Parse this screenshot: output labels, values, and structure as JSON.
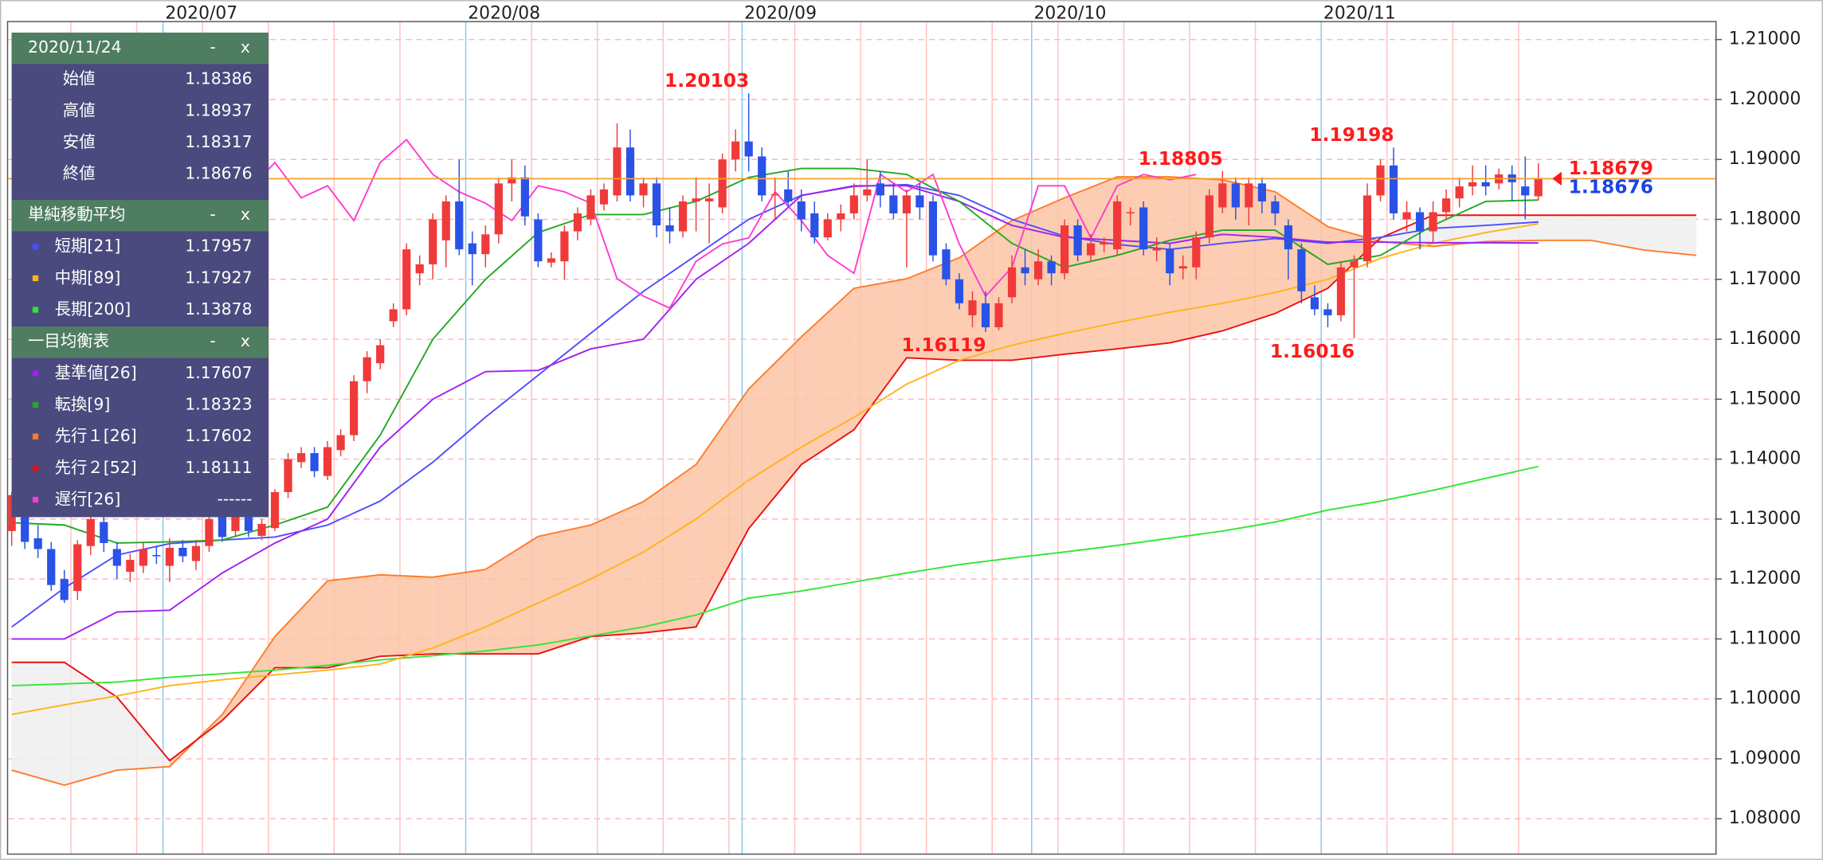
{
  "chart_data": {
    "type": "candlestick",
    "xlim": [
      -0.27,
      129.5
    ],
    "ylim": [
      1.0741,
      1.2131
    ],
    "yticks": [
      {
        "value": 1.08,
        "label": "1.08000"
      },
      {
        "value": 1.09,
        "label": "1.09000"
      },
      {
        "value": 1.1,
        "label": "1.10000"
      },
      {
        "value": 1.11,
        "label": "1.11000"
      },
      {
        "value": 1.12,
        "label": "1.12000"
      },
      {
        "value": 1.13,
        "label": "1.13000"
      },
      {
        "value": 1.14,
        "label": "1.14000"
      },
      {
        "value": 1.15,
        "label": "1.15000"
      },
      {
        "value": 1.16,
        "label": "1.16000"
      },
      {
        "value": 1.17,
        "label": "1.17000"
      },
      {
        "value": 1.18,
        "label": "1.18000"
      },
      {
        "value": 1.19,
        "label": "1.19000"
      },
      {
        "value": 1.2,
        "label": "1.20000"
      },
      {
        "value": 1.21,
        "label": "1.21000"
      }
    ],
    "xticks": [
      {
        "value": 11.5,
        "label": "2020/07"
      },
      {
        "value": 34.5,
        "label": "2020/08"
      },
      {
        "value": 55.5,
        "label": "2020/09"
      },
      {
        "value": 77.5,
        "label": "2020/10"
      },
      {
        "value": 99.5,
        "label": "2020/11"
      }
    ],
    "xgrid_minor": [
      4.5,
      9.5,
      14.5,
      19.5,
      24.5,
      29.5,
      39.5,
      44.5,
      49.5,
      54.5,
      59.5,
      64.5,
      69.5,
      74.5,
      79.5,
      84.5,
      89.5,
      94.5,
      104.5,
      109.5,
      114.5
    ],
    "grid": true,
    "up_color": "#f03a3a",
    "down_color": "#2a52e6",
    "open": [
      1.128,
      1.134,
      1.1268,
      1.125,
      1.12,
      1.118,
      1.1255,
      1.1295,
      1.125,
      1.1212,
      1.1222,
      1.124,
      1.1222,
      1.1252,
      1.123,
      1.1255,
      1.131,
      1.128,
      1.133,
      1.1272,
      1.1285,
      1.1345,
      1.1395,
      1.141,
      1.1372,
      1.1415,
      1.144,
      1.153,
      1.156,
      1.163,
      1.165,
      1.171,
      1.1725,
      1.1765,
      1.183,
      1.176,
      1.1742,
      1.1775,
      1.186,
      1.187,
      1.18,
      1.1728,
      1.173,
      1.178,
      1.18,
      1.1825,
      1.184,
      1.192,
      1.184,
      1.186,
      1.179,
      1.178,
      1.183,
      1.183,
      1.182,
      1.19,
      1.193,
      1.1905,
      1.184,
      1.185,
      1.183,
      1.181,
      1.177,
      1.18,
      1.181,
      1.184,
      1.186,
      1.184,
      1.181,
      1.184,
      1.183,
      1.175,
      1.17,
      1.164,
      1.166,
      1.162,
      1.167,
      1.172,
      1.17,
      1.173,
      1.171,
      1.179,
      1.174,
      1.1758,
      1.175,
      1.181,
      1.182,
      1.1748,
      1.175,
      1.1718,
      1.172,
      1.177,
      1.182,
      1.186,
      1.182,
      1.186,
      1.183,
      1.179,
      1.175,
      1.167,
      1.165,
      1.164,
      1.172,
      1.173,
      1.184,
      1.189,
      1.18,
      1.1812,
      1.178,
      1.1812,
      1.1835,
      1.1855,
      1.1862,
      1.186,
      1.1875,
      1.1855,
      1.18386
    ],
    "high": [
      1.1345,
      1.1355,
      1.129,
      1.1262,
      1.1215,
      1.1265,
      1.132,
      1.1305,
      1.1262,
      1.1242,
      1.1262,
      1.1255,
      1.1268,
      1.1265,
      1.1265,
      1.131,
      1.1325,
      1.133,
      1.1345,
      1.13,
      1.135,
      1.141,
      1.142,
      1.142,
      1.143,
      1.145,
      1.154,
      1.158,
      1.16,
      1.166,
      1.176,
      1.174,
      1.181,
      1.184,
      1.19,
      1.178,
      1.179,
      1.187,
      1.19,
      1.189,
      1.181,
      1.1745,
      1.179,
      1.182,
      1.185,
      1.186,
      1.196,
      1.195,
      1.187,
      1.187,
      1.182,
      1.184,
      1.187,
      1.186,
      1.191,
      1.195,
      1.20103,
      1.192,
      1.187,
      1.188,
      1.185,
      1.183,
      1.181,
      1.1825,
      1.186,
      1.19,
      1.188,
      1.186,
      1.185,
      1.186,
      1.184,
      1.176,
      1.171,
      1.168,
      1.168,
      1.167,
      1.174,
      1.175,
      1.175,
      1.174,
      1.18,
      1.18,
      1.1775,
      1.177,
      1.184,
      1.182,
      1.183,
      1.177,
      1.176,
      1.174,
      1.178,
      1.185,
      1.18805,
      1.187,
      1.187,
      1.187,
      1.184,
      1.18,
      1.176,
      1.169,
      1.166,
      1.173,
      1.174,
      1.186,
      1.19,
      1.19198,
      1.183,
      1.182,
      1.183,
      1.185,
      1.187,
      1.189,
      1.189,
      1.1885,
      1.189,
      1.1905,
      1.18937
    ],
    "low": [
      1.1255,
      1.125,
      1.1235,
      1.118,
      1.116,
      1.1165,
      1.124,
      1.1245,
      1.12,
      1.1195,
      1.121,
      1.1225,
      1.1195,
      1.1228,
      1.1215,
      1.1245,
      1.1262,
      1.127,
      1.127,
      1.1265,
      1.128,
      1.1335,
      1.1385,
      1.137,
      1.1365,
      1.1405,
      1.143,
      1.151,
      1.155,
      1.162,
      1.164,
      1.169,
      1.17,
      1.172,
      1.174,
      1.169,
      1.172,
      1.176,
      1.183,
      1.179,
      1.172,
      1.172,
      1.17,
      1.1765,
      1.179,
      1.1815,
      1.183,
      1.183,
      1.182,
      1.177,
      1.176,
      1.177,
      1.178,
      1.176,
      1.181,
      1.188,
      1.188,
      1.183,
      1.18,
      1.182,
      1.178,
      1.176,
      1.1765,
      1.178,
      1.18,
      1.183,
      1.182,
      1.18,
      1.172,
      1.18,
      1.173,
      1.169,
      1.165,
      1.162,
      1.16119,
      1.1615,
      1.166,
      1.169,
      1.169,
      1.169,
      1.17,
      1.173,
      1.173,
      1.1745,
      1.174,
      1.179,
      1.174,
      1.173,
      1.169,
      1.17,
      1.17,
      1.176,
      1.181,
      1.18,
      1.179,
      1.181,
      1.179,
      1.17,
      1.166,
      1.164,
      1.162,
      1.163,
      1.16016,
      1.172,
      1.183,
      1.18,
      1.178,
      1.175,
      1.176,
      1.18,
      1.182,
      1.184,
      1.184,
      1.185,
      1.183,
      1.18,
      1.18317
    ],
    "close": [
      1.134,
      1.1262,
      1.125,
      1.119,
      1.1165,
      1.1258,
      1.13,
      1.126,
      1.1222,
      1.1232,
      1.125,
      1.1238,
      1.1252,
      1.1238,
      1.1255,
      1.13,
      1.127,
      1.132,
      1.128,
      1.1292,
      1.1345,
      1.14,
      1.141,
      1.138,
      1.142,
      1.144,
      1.153,
      1.157,
      1.159,
      1.165,
      1.175,
      1.1725,
      1.18,
      1.183,
      1.175,
      1.1742,
      1.1775,
      1.186,
      1.187,
      1.1805,
      1.173,
      1.1735,
      1.178,
      1.181,
      1.184,
      1.185,
      1.192,
      1.184,
      1.186,
      1.179,
      1.178,
      1.183,
      1.1835,
      1.1835,
      1.19,
      1.193,
      1.1905,
      1.184,
      1.1842,
      1.183,
      1.18,
      1.177,
      1.18,
      1.181,
      1.184,
      1.185,
      1.184,
      1.181,
      1.184,
      1.182,
      1.174,
      1.17,
      1.166,
      1.1665,
      1.162,
      1.166,
      1.172,
      1.171,
      1.173,
      1.171,
      1.179,
      1.174,
      1.176,
      1.1762,
      1.183,
      1.1812,
      1.175,
      1.1752,
      1.171,
      1.1722,
      1.177,
      1.184,
      1.186,
      1.182,
      1.186,
      1.183,
      1.181,
      1.175,
      1.168,
      1.165,
      1.164,
      1.172,
      1.173,
      1.184,
      1.189,
      1.181,
      1.1812,
      1.178,
      1.1812,
      1.1835,
      1.1855,
      1.1862,
      1.1855,
      1.1875,
      1.1862,
      1.184,
      1.18676
    ],
    "high_labels": [
      56,
      92,
      105
    ],
    "low_labels": [
      74,
      102
    ],
    "label_color": "#ff1a1a",
    "current_price": 1.18679,
    "current_color": "#f0a030",
    "current_label_color": "#ff1a1a",
    "close_label_color": "#1a44e6",
    "cloud": {
      "x": [
        0,
        4,
        8,
        12,
        16,
        20,
        24,
        28,
        32,
        36,
        40,
        44,
        48,
        52,
        56,
        60,
        64,
        68,
        72,
        76,
        80,
        84,
        88,
        92,
        96,
        100,
        104,
        108,
        112,
        116,
        120,
        124,
        128
      ],
      "a": [
        1.0881,
        1.0856,
        1.0881,
        1.0887,
        1.0974,
        1.1104,
        1.1197,
        1.1207,
        1.1203,
        1.1216,
        1.1271,
        1.129,
        1.1329,
        1.1391,
        1.1517,
        1.1604,
        1.1685,
        1.1701,
        1.1736,
        1.1798,
        1.1836,
        1.1871,
        1.1871,
        1.1866,
        1.1846,
        1.1788,
        1.1763,
        1.1755,
        1.1763,
        1.1765,
        1.1765,
        1.1749,
        1.174
      ],
      "b": [
        1.1061,
        1.1061,
        1.1003,
        1.0897,
        1.0964,
        1.1052,
        1.1052,
        1.1071,
        1.1075,
        1.1075,
        1.1075,
        1.1104,
        1.111,
        1.112,
        1.1284,
        1.1391,
        1.1449,
        1.1569,
        1.1565,
        1.1565,
        1.1575,
        1.1584,
        1.1594,
        1.1614,
        1.1643,
        1.1685,
        1.1769,
        1.1807,
        1.1807,
        1.1807,
        1.1807,
        1.1807,
        1.1807
      ],
      "a_color": "#ff7b2a",
      "b_color": "#e81010",
      "fill_up": "#fcc4a6",
      "fill_down": "#eeeeee"
    },
    "lines": [
      {
        "color": "#33e533",
        "x": [
          0,
          4,
          8,
          12,
          16,
          20,
          24,
          28,
          32,
          36,
          40,
          44,
          48,
          52,
          56,
          60,
          64,
          68,
          72,
          76,
          80,
          84,
          88,
          92,
          96,
          100,
          104,
          108,
          112,
          116
        ],
        "values": [
          1.1022,
          1.1025,
          1.1028,
          1.1036,
          1.1042,
          1.1048,
          1.1056,
          1.1065,
          1.1072,
          1.108,
          1.109,
          1.1105,
          1.112,
          1.114,
          1.1168,
          1.118,
          1.1195,
          1.121,
          1.1224,
          1.1235,
          1.1245,
          1.1256,
          1.1268,
          1.128,
          1.1295,
          1.1315,
          1.133,
          1.1348,
          1.1368,
          1.13878
        ]
      },
      {
        "color": "#ffb319",
        "x": [
          0,
          4,
          8,
          12,
          16,
          20,
          24,
          28,
          32,
          36,
          40,
          44,
          48,
          52,
          56,
          60,
          64,
          68,
          72,
          76,
          80,
          84,
          88,
          92,
          96,
          100,
          104,
          108,
          112,
          116
        ],
        "values": [
          1.0974,
          1.099,
          1.1005,
          1.1022,
          1.1032,
          1.104,
          1.1048,
          1.1058,
          1.1085,
          1.112,
          1.116,
          1.12,
          1.1245,
          1.13,
          1.1365,
          1.142,
          1.147,
          1.1525,
          1.1565,
          1.159,
          1.161,
          1.1628,
          1.1645,
          1.166,
          1.1678,
          1.17,
          1.1735,
          1.176,
          1.1778,
          1.17927
        ]
      },
      {
        "color": "#4d4dff",
        "x": [
          0,
          4,
          8,
          12,
          16,
          20,
          24,
          28,
          32,
          36,
          40,
          44,
          48,
          52,
          56,
          60,
          64,
          68,
          72,
          76,
          80,
          84,
          88,
          92,
          96,
          100,
          104,
          108,
          112,
          116
        ],
        "values": [
          1.112,
          1.1185,
          1.124,
          1.1259,
          1.1265,
          1.127,
          1.129,
          1.133,
          1.1395,
          1.147,
          1.154,
          1.161,
          1.168,
          1.174,
          1.18,
          1.184,
          1.1855,
          1.1858,
          1.184,
          1.18,
          1.1772,
          1.1758,
          1.175,
          1.176,
          1.1768,
          1.176,
          1.177,
          1.1785,
          1.179,
          1.17957
        ]
      },
      {
        "color": "#a020f0",
        "x": [
          0,
          4,
          8,
          12,
          16,
          20,
          24,
          28,
          32,
          36,
          40,
          44,
          48,
          52,
          56,
          60,
          64,
          68,
          72,
          76,
          80,
          84,
          88,
          92,
          96,
          100,
          104,
          108,
          112,
          116
        ],
        "values": [
          1.11,
          1.11,
          1.1145,
          1.1148,
          1.121,
          1.126,
          1.13,
          1.142,
          1.15,
          1.1546,
          1.1548,
          1.1584,
          1.16,
          1.17,
          1.176,
          1.184,
          1.1856,
          1.1856,
          1.183,
          1.179,
          1.177,
          1.1765,
          1.176,
          1.1775,
          1.177,
          1.1762,
          1.1762,
          1.1761,
          1.1761,
          1.17607
        ]
      },
      {
        "color": "#22a822",
        "x": [
          0,
          4,
          8,
          12,
          16,
          20,
          24,
          28,
          32,
          36,
          40,
          44,
          48,
          52,
          56,
          60,
          64,
          68,
          72,
          76,
          80,
          84,
          88,
          92,
          96,
          100,
          104,
          108,
          112,
          116
        ],
        "values": [
          1.1294,
          1.129,
          1.126,
          1.1262,
          1.1265,
          1.129,
          1.132,
          1.144,
          1.16,
          1.17,
          1.1778,
          1.1808,
          1.1808,
          1.183,
          1.187,
          1.1885,
          1.1885,
          1.1875,
          1.183,
          1.176,
          1.172,
          1.174,
          1.1765,
          1.1782,
          1.1782,
          1.1725,
          1.174,
          1.179,
          1.183,
          1.18323
        ]
      },
      {
        "color": "#ff3ad0",
        "x": [
          0,
          4,
          8,
          12,
          16,
          20,
          22,
          24,
          26,
          28,
          30,
          32,
          34,
          36,
          38,
          40,
          42,
          44,
          46,
          48,
          50,
          52,
          54,
          56,
          58,
          60,
          62,
          64,
          66,
          68,
          70,
          72,
          74,
          76,
          78,
          80,
          82,
          84,
          86,
          88,
          90
        ],
        "values": [
          1.1445,
          1.152,
          1.16,
          1.17,
          1.18,
          1.1895,
          1.1836,
          1.1856,
          1.1798,
          1.1895,
          1.1933,
          1.1875,
          1.1846,
          1.1827,
          1.1798,
          1.1856,
          1.1846,
          1.1827,
          1.1701,
          1.1672,
          1.1652,
          1.173,
          1.1759,
          1.1769,
          1.1846,
          1.1798,
          1.174,
          1.171,
          1.1875,
          1.1846,
          1.1875,
          1.1759,
          1.1672,
          1.172,
          1.1856,
          1.1856,
          1.1769,
          1.1856,
          1.1875,
          1.1866,
          1.1875
        ]
      }
    ]
  },
  "info_panel": {
    "date": "2020/11/24",
    "minimize": "-",
    "close": "x",
    "sections": [
      {
        "rows": [
          {
            "label": "始値",
            "value": "1.18386"
          },
          {
            "label": "高値",
            "value": "1.18937"
          },
          {
            "label": "安値",
            "value": "1.18317"
          },
          {
            "label": "終値",
            "value": "1.18676"
          }
        ]
      },
      {
        "title": "単純移動平均",
        "rows": [
          {
            "label": "短期[21]",
            "value": "1.17957",
            "color": "#4d4dff"
          },
          {
            "label": "中期[89]",
            "value": "1.17927",
            "color": "#ffb319"
          },
          {
            "label": "長期[200]",
            "value": "1.13878",
            "color": "#33e533"
          }
        ]
      },
      {
        "title": "一目均衡表",
        "rows": [
          {
            "label": "基準値[26]",
            "value": "1.17607",
            "color": "#a020f0"
          },
          {
            "label": "転換[9]",
            "value": "1.18323",
            "color": "#22a822"
          },
          {
            "label": "先行１[26]",
            "value": "1.17602",
            "color": "#ff7b2a"
          },
          {
            "label": "先行２[52]",
            "value": "1.18111",
            "color": "#e81010"
          },
          {
            "label": "遅行[26]",
            "value": "------",
            "color": "#ff3ad0"
          }
        ]
      }
    ]
  }
}
